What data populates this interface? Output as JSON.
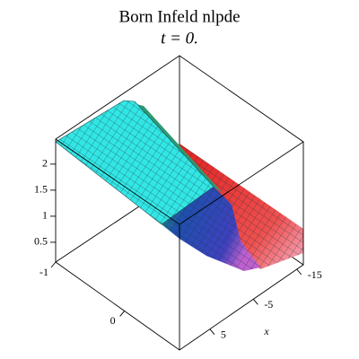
{
  "chart_data": {
    "type": "surface",
    "title": "Born Infeld nlpde",
    "subtitle": "t = 0.",
    "xlabel": "x",
    "xlim": [
      12,
      -16.5
    ],
    "xticks": [
      5,
      -5,
      -15
    ],
    "ylim": [
      -1,
      0.8
    ],
    "yticks": [
      -1,
      0
    ],
    "zlim": [
      0.12,
      2.48
    ],
    "zticks": [
      0.5,
      1,
      1.5,
      2
    ]
  }
}
